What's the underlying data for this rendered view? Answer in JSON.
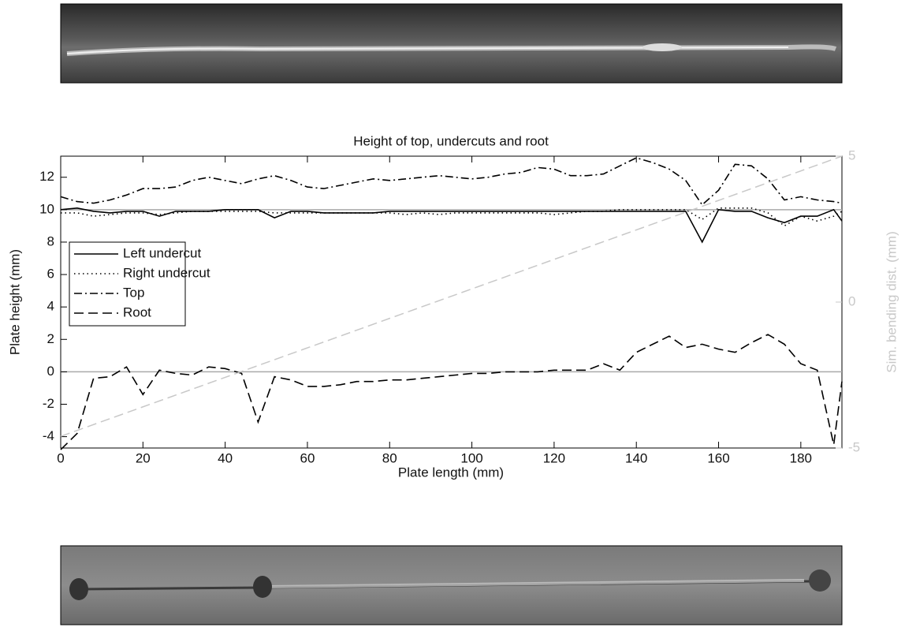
{
  "chart_data": {
    "type": "line",
    "title": "Height of top, undercuts and root",
    "xlabel": "Plate length (mm)",
    "ylabel": "Plate height (mm)",
    "y2label": "Sim. bending dist. (mm)",
    "xlim": [
      0,
      190
    ],
    "xticks": [
      0,
      20,
      40,
      60,
      80,
      100,
      120,
      140,
      160,
      180
    ],
    "ylim": [
      -4.7,
      13.3
    ],
    "yticks": [
      -4,
      -2,
      0,
      2,
      4,
      6,
      8,
      10,
      12
    ],
    "y2lim": [
      -5,
      5
    ],
    "y2ticks": [
      -5,
      0,
      5
    ],
    "reference_lines": [
      0,
      10
    ],
    "legend": "left",
    "x": [
      0,
      4,
      8,
      12,
      16,
      20,
      24,
      28,
      32,
      36,
      40,
      44,
      48,
      52,
      56,
      60,
      64,
      68,
      72,
      76,
      80,
      84,
      88,
      92,
      96,
      100,
      104,
      108,
      112,
      116,
      120,
      124,
      128,
      132,
      136,
      140,
      144,
      148,
      152,
      156,
      160,
      164,
      168,
      172,
      176,
      180,
      184,
      188,
      190
    ],
    "series": [
      {
        "name": "Left undercut",
        "color": "#000000",
        "style": "solid",
        "values": [
          10,
          10.1,
          9.9,
          9.8,
          9.9,
          9.9,
          9.6,
          9.9,
          9.9,
          9.9,
          10,
          10,
          10,
          9.5,
          9.9,
          9.9,
          9.8,
          9.8,
          9.8,
          9.8,
          9.9,
          9.9,
          9.9,
          9.9,
          9.9,
          9.9,
          9.9,
          9.9,
          9.9,
          9.9,
          9.9,
          9.9,
          9.9,
          9.9,
          9.9,
          9.9,
          9.9,
          9.9,
          9.9,
          8.0,
          10,
          9.9,
          9.9,
          9.5,
          9.2,
          9.6,
          9.6,
          10,
          9.3
        ]
      },
      {
        "name": "Right undercut",
        "color": "#000000",
        "style": "dotted",
        "values": [
          9.8,
          9.8,
          9.6,
          9.7,
          9.8,
          9.8,
          9.7,
          9.8,
          9.9,
          9.9,
          9.9,
          9.9,
          9.9,
          9.8,
          9.8,
          9.8,
          9.8,
          9.8,
          9.8,
          9.8,
          9.8,
          9.7,
          9.8,
          9.7,
          9.8,
          9.8,
          9.8,
          9.8,
          9.8,
          9.8,
          9.7,
          9.8,
          9.9,
          9.9,
          10,
          10,
          10,
          10,
          10,
          9.4,
          10.1,
          10.1,
          10.1,
          9.8,
          9.0,
          9.6,
          9.3,
          9.6,
          9.9
        ]
      },
      {
        "name": "Top",
        "color": "#000000",
        "style": "dashdot",
        "values": [
          10.8,
          10.5,
          10.4,
          10.6,
          10.9,
          11.3,
          11.3,
          11.4,
          11.8,
          12.0,
          11.8,
          11.6,
          11.9,
          12.1,
          11.8,
          11.4,
          11.3,
          11.5,
          11.7,
          11.9,
          11.8,
          11.9,
          12.0,
          12.1,
          12.0,
          11.9,
          12.0,
          12.2,
          12.3,
          12.6,
          12.5,
          12.1,
          12.1,
          12.2,
          12.7,
          13.2,
          12.9,
          12.5,
          11.8,
          10.3,
          11.2,
          12.8,
          12.7,
          11.9,
          10.6,
          10.8,
          10.6,
          10.5,
          10.4
        ]
      },
      {
        "name": "Root",
        "color": "#000000",
        "style": "dashed",
        "values": [
          -4.8,
          -3.8,
          -0.4,
          -0.3,
          0.3,
          -1.4,
          0.1,
          -0.1,
          -0.2,
          0.3,
          0.2,
          -0.1,
          -3.1,
          -0.3,
          -0.5,
          -0.9,
          -0.9,
          -0.8,
          -0.6,
          -0.6,
          -0.5,
          -0.5,
          -0.4,
          -0.3,
          -0.2,
          -0.1,
          -0.1,
          0,
          0,
          0,
          0.1,
          0.1,
          0.1,
          0.5,
          0.1,
          1.2,
          1.7,
          2.2,
          1.5,
          1.7,
          1.4,
          1.2,
          1.8,
          2.3,
          1.7,
          0.5,
          0.1,
          -4.5,
          -0.6
        ]
      },
      {
        "color": "#c8c8c8",
        "style": "dashed",
        "axis": "y2",
        "x": [
          0,
          190
        ],
        "values": [
          -4.6,
          5
        ]
      }
    ]
  }
}
